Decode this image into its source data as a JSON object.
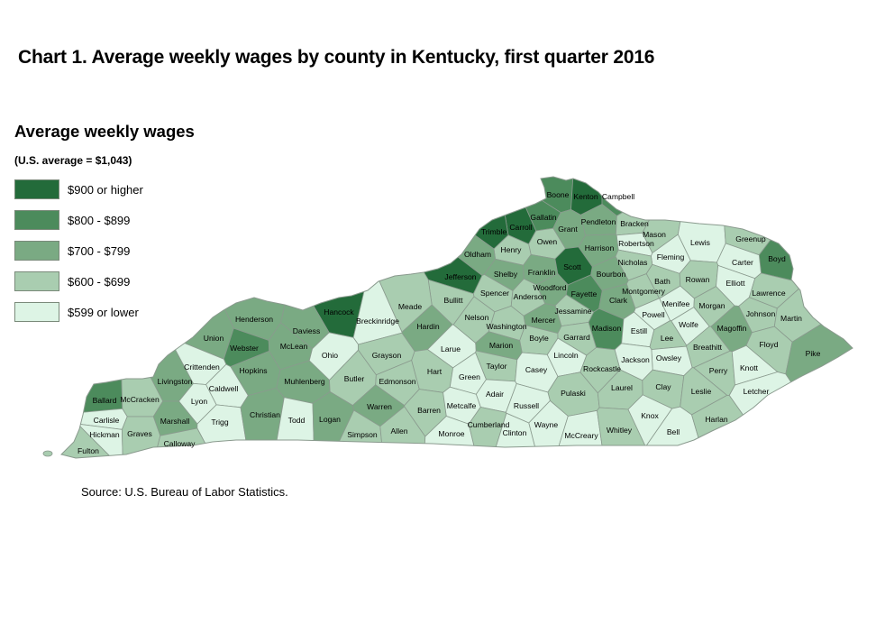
{
  "title": "Chart 1. Average weekly wages by county in Kentucky, first quarter 2016",
  "legend": {
    "heading": "Average weekly wages",
    "subheading": "(U.S. average = $1,043)",
    "classes": [
      {
        "label": "$900 or higher",
        "color": "#236b3a"
      },
      {
        "label": "$800 - $899",
        "color": "#4c8b5c"
      },
      {
        "label": "$700 - $799",
        "color": "#7aaa83"
      },
      {
        "label": "$600 - $699",
        "color": "#a9cdb0"
      },
      {
        "label": "$599 or lower",
        "color": "#ddf4e5"
      }
    ]
  },
  "source": "Source: U.S. Bureau of Labor Statistics.",
  "counties": [
    {
      "name": "Boone",
      "class": 1
    },
    {
      "name": "Kenton",
      "class": 0
    },
    {
      "name": "Campbell",
      "class": 1
    },
    {
      "name": "Gallatin",
      "class": 1
    },
    {
      "name": "Carroll",
      "class": 0
    },
    {
      "name": "Trimble",
      "class": 0
    },
    {
      "name": "Grant",
      "class": 2
    },
    {
      "name": "Pendleton",
      "class": 2
    },
    {
      "name": "Bracken",
      "class": 3
    },
    {
      "name": "Mason",
      "class": 3
    },
    {
      "name": "Lewis",
      "class": 4
    },
    {
      "name": "Greenup",
      "class": 3
    },
    {
      "name": "Boyd",
      "class": 1
    },
    {
      "name": "Carter",
      "class": 4
    },
    {
      "name": "Robertson",
      "class": 4
    },
    {
      "name": "Fleming",
      "class": 4
    },
    {
      "name": "Nicholas",
      "class": 3
    },
    {
      "name": "Harrison",
      "class": 2
    },
    {
      "name": "Owen",
      "class": 3
    },
    {
      "name": "Henry",
      "class": 3
    },
    {
      "name": "Oldham",
      "class": 2
    },
    {
      "name": "Jefferson",
      "class": 0
    },
    {
      "name": "Shelby",
      "class": 2
    },
    {
      "name": "Franklin",
      "class": 2
    },
    {
      "name": "Scott",
      "class": 0
    },
    {
      "name": "Bourbon",
      "class": 2
    },
    {
      "name": "Bath",
      "class": 3
    },
    {
      "name": "Rowan",
      "class": 3
    },
    {
      "name": "Elliott",
      "class": 4
    },
    {
      "name": "Lawrence",
      "class": 3
    },
    {
      "name": "Bullitt",
      "class": 3
    },
    {
      "name": "Spencer",
      "class": 3
    },
    {
      "name": "Anderson",
      "class": 3
    },
    {
      "name": "Woodford",
      "class": 2
    },
    {
      "name": "Fayette",
      "class": 1
    },
    {
      "name": "Clark",
      "class": 2
    },
    {
      "name": "Montgomery",
      "class": 3
    },
    {
      "name": "Menifee",
      "class": 4
    },
    {
      "name": "Morgan",
      "class": 3
    },
    {
      "name": "Johnson",
      "class": 3
    },
    {
      "name": "Martin",
      "class": 3
    },
    {
      "name": "Meade",
      "class": 3
    },
    {
      "name": "Hancock",
      "class": 0
    },
    {
      "name": "Breckinridge",
      "class": 4
    },
    {
      "name": "Hardin",
      "class": 2
    },
    {
      "name": "Nelson",
      "class": 3
    },
    {
      "name": "Washington",
      "class": 3
    },
    {
      "name": "Mercer",
      "class": 2
    },
    {
      "name": "Jessamine",
      "class": 3
    },
    {
      "name": "Madison",
      "class": 1
    },
    {
      "name": "Powell",
      "class": 4
    },
    {
      "name": "Wolfe",
      "class": 4
    },
    {
      "name": "Magoffin",
      "class": 2
    },
    {
      "name": "Floyd",
      "class": 3
    },
    {
      "name": "Pike",
      "class": 2
    },
    {
      "name": "Henderson",
      "class": 2
    },
    {
      "name": "Daviess",
      "class": 2
    },
    {
      "name": "Union",
      "class": 2
    },
    {
      "name": "Webster",
      "class": 1
    },
    {
      "name": "McLean",
      "class": 2
    },
    {
      "name": "Ohio",
      "class": 4
    },
    {
      "name": "Grayson",
      "class": 3
    },
    {
      "name": "Larue",
      "class": 4
    },
    {
      "name": "Marion",
      "class": 2
    },
    {
      "name": "Boyle",
      "class": 3
    },
    {
      "name": "Garrard",
      "class": 3
    },
    {
      "name": "Estill",
      "class": 4
    },
    {
      "name": "Lee",
      "class": 3
    },
    {
      "name": "Breathitt",
      "class": 3
    },
    {
      "name": "Owsley",
      "class": 4
    },
    {
      "name": "Jackson",
      "class": 4
    },
    {
      "name": "Crittenden",
      "class": 4
    },
    {
      "name": "Livingston",
      "class": 2
    },
    {
      "name": "Hopkins",
      "class": 2
    },
    {
      "name": "Muhlenberg",
      "class": 2
    },
    {
      "name": "Butler",
      "class": 3
    },
    {
      "name": "Edmonson",
      "class": 3
    },
    {
      "name": "Hart",
      "class": 3
    },
    {
      "name": "Green",
      "class": 4
    },
    {
      "name": "Taylor",
      "class": 3
    },
    {
      "name": "Casey",
      "class": 4
    },
    {
      "name": "Lincoln",
      "class": 4
    },
    {
      "name": "Rockcastle",
      "class": 3
    },
    {
      "name": "Perry",
      "class": 3
    },
    {
      "name": "Knott",
      "class": 4
    },
    {
      "name": "Ballard",
      "class": 1
    },
    {
      "name": "McCracken",
      "class": 3
    },
    {
      "name": "Caldwell",
      "class": 4
    },
    {
      "name": "Lyon",
      "class": 4
    },
    {
      "name": "Adair",
      "class": 4
    },
    {
      "name": "Pulaski",
      "class": 3
    },
    {
      "name": "Laurel",
      "class": 3
    },
    {
      "name": "Clay",
      "class": 3
    },
    {
      "name": "Leslie",
      "class": 3
    },
    {
      "name": "Letcher",
      "class": 4
    },
    {
      "name": "Carlisle",
      "class": 4
    },
    {
      "name": "Marshall",
      "class": 2
    },
    {
      "name": "Trigg",
      "class": 4
    },
    {
      "name": "Christian",
      "class": 2
    },
    {
      "name": "Todd",
      "class": 4
    },
    {
      "name": "Logan",
      "class": 2
    },
    {
      "name": "Warren",
      "class": 2
    },
    {
      "name": "Barren",
      "class": 3
    },
    {
      "name": "Metcalfe",
      "class": 4
    },
    {
      "name": "Russell",
      "class": 4
    },
    {
      "name": "Hickman",
      "class": 4
    },
    {
      "name": "Graves",
      "class": 3
    },
    {
      "name": "Simpson",
      "class": 3
    },
    {
      "name": "Allen",
      "class": 3
    },
    {
      "name": "Monroe",
      "class": 4
    },
    {
      "name": "Cumberland",
      "class": 3
    },
    {
      "name": "Clinton",
      "class": 4
    },
    {
      "name": "Wayne",
      "class": 4
    },
    {
      "name": "McCreary",
      "class": 4
    },
    {
      "name": "Whitley",
      "class": 3
    },
    {
      "name": "Knox",
      "class": 4
    },
    {
      "name": "Bell",
      "class": 4
    },
    {
      "name": "Harlan",
      "class": 3
    },
    {
      "name": "Fulton",
      "class": 3
    },
    {
      "name": "Calloway",
      "class": 3
    }
  ]
}
